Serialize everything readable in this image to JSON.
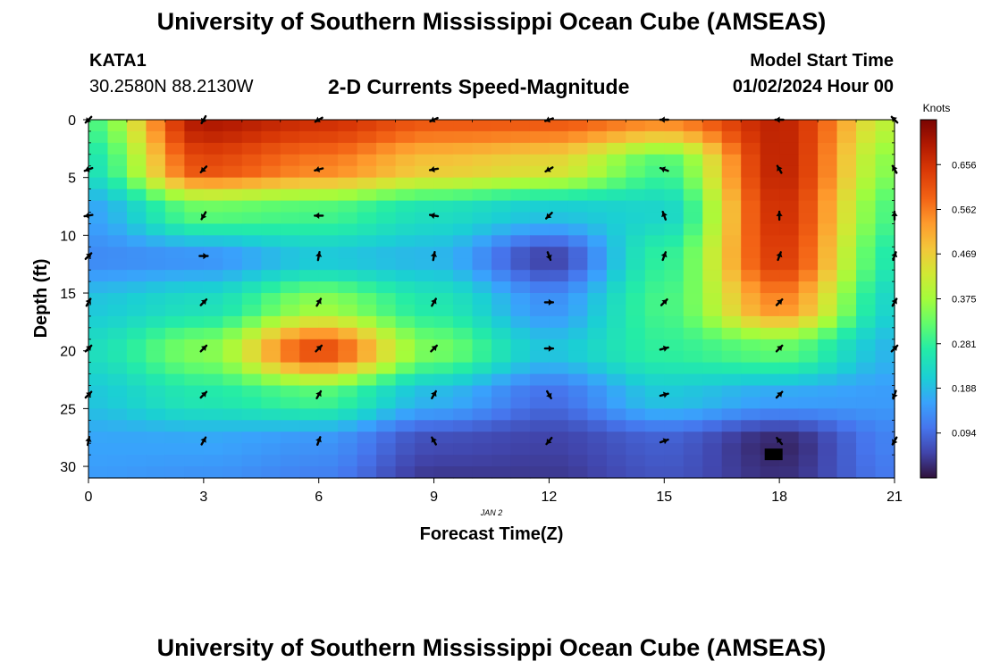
{
  "header": {
    "title": "University of Southern Mississippi Ocean Cube (AMSEAS)",
    "station": "KATA1",
    "coords": "30.2580N  88.2130W",
    "plot_title": "2-D Currents Speed-Magnitude",
    "model_label": "Model Start Time",
    "model_time": "01/02/2024 Hour 00"
  },
  "footer": {
    "title": "University of Southern Mississippi Ocean Cube (AMSEAS)"
  },
  "chart_data": {
    "type": "heatmap",
    "title": "2-D Currents Speed-Magnitude",
    "xlabel": "Forecast Time(Z)",
    "ylabel": "Depth (ft)",
    "date_label": "JAN 2",
    "xlim": [
      0,
      21
    ],
    "ylim": [
      0,
      31
    ],
    "x_ticks": [
      0,
      3,
      6,
      9,
      12,
      15,
      18,
      21
    ],
    "y_ticks": [
      0,
      5,
      10,
      15,
      20,
      25,
      30
    ],
    "colorbar": {
      "label": "Knots",
      "min": 0.0,
      "max": 0.75,
      "ticks": [
        0.094,
        0.188,
        0.281,
        0.375,
        0.469,
        0.562,
        0.656
      ]
    },
    "speed_grid": {
      "x": [
        0,
        3,
        6,
        9,
        12,
        15,
        18,
        21
      ],
      "depths": [
        0,
        4,
        8,
        12,
        16,
        20,
        24,
        28,
        31
      ],
      "values": [
        [
          0.3,
          0.7,
          0.66,
          0.6,
          0.6,
          0.55,
          0.68,
          0.4
        ],
        [
          0.25,
          0.62,
          0.56,
          0.48,
          0.45,
          0.3,
          0.68,
          0.35
        ],
        [
          0.16,
          0.32,
          0.3,
          0.24,
          0.2,
          0.22,
          0.66,
          0.3
        ],
        [
          0.13,
          0.14,
          0.2,
          0.18,
          0.05,
          0.28,
          0.64,
          0.26
        ],
        [
          0.2,
          0.24,
          0.36,
          0.26,
          0.14,
          0.3,
          0.55,
          0.22
        ],
        [
          0.24,
          0.35,
          0.62,
          0.34,
          0.2,
          0.28,
          0.32,
          0.18
        ],
        [
          0.2,
          0.26,
          0.3,
          0.18,
          0.1,
          0.2,
          0.16,
          0.15
        ],
        [
          0.16,
          0.16,
          0.14,
          0.06,
          0.05,
          0.08,
          0.02,
          0.12
        ],
        [
          0.15,
          0.14,
          0.12,
          0.04,
          0.04,
          0.07,
          0.03,
          0.11
        ]
      ]
    },
    "vectors": {
      "x": [
        0,
        3,
        6,
        9,
        12,
        15,
        18,
        21
      ],
      "depths": [
        0,
        4.3,
        8.3,
        11.8,
        15.8,
        19.8,
        23.8,
        27.8
      ],
      "angles_deg": [
        [
          225,
          240,
          210,
          205,
          200,
          180,
          180,
          135
        ],
        [
          200,
          225,
          195,
          190,
          210,
          160,
          120,
          120
        ],
        [
          190,
          240,
          180,
          170,
          225,
          110,
          90,
          90
        ],
        [
          45,
          0,
          80,
          80,
          -70,
          70,
          70,
          70
        ],
        [
          60,
          45,
          60,
          60,
          0,
          45,
          45,
          60
        ],
        [
          45,
          45,
          45,
          45,
          0,
          15,
          45,
          45
        ],
        [
          45,
          45,
          60,
          60,
          -60,
          15,
          45,
          -110
        ],
        [
          80,
          60,
          70,
          120,
          230,
          20,
          130,
          240
        ]
      ]
    }
  }
}
